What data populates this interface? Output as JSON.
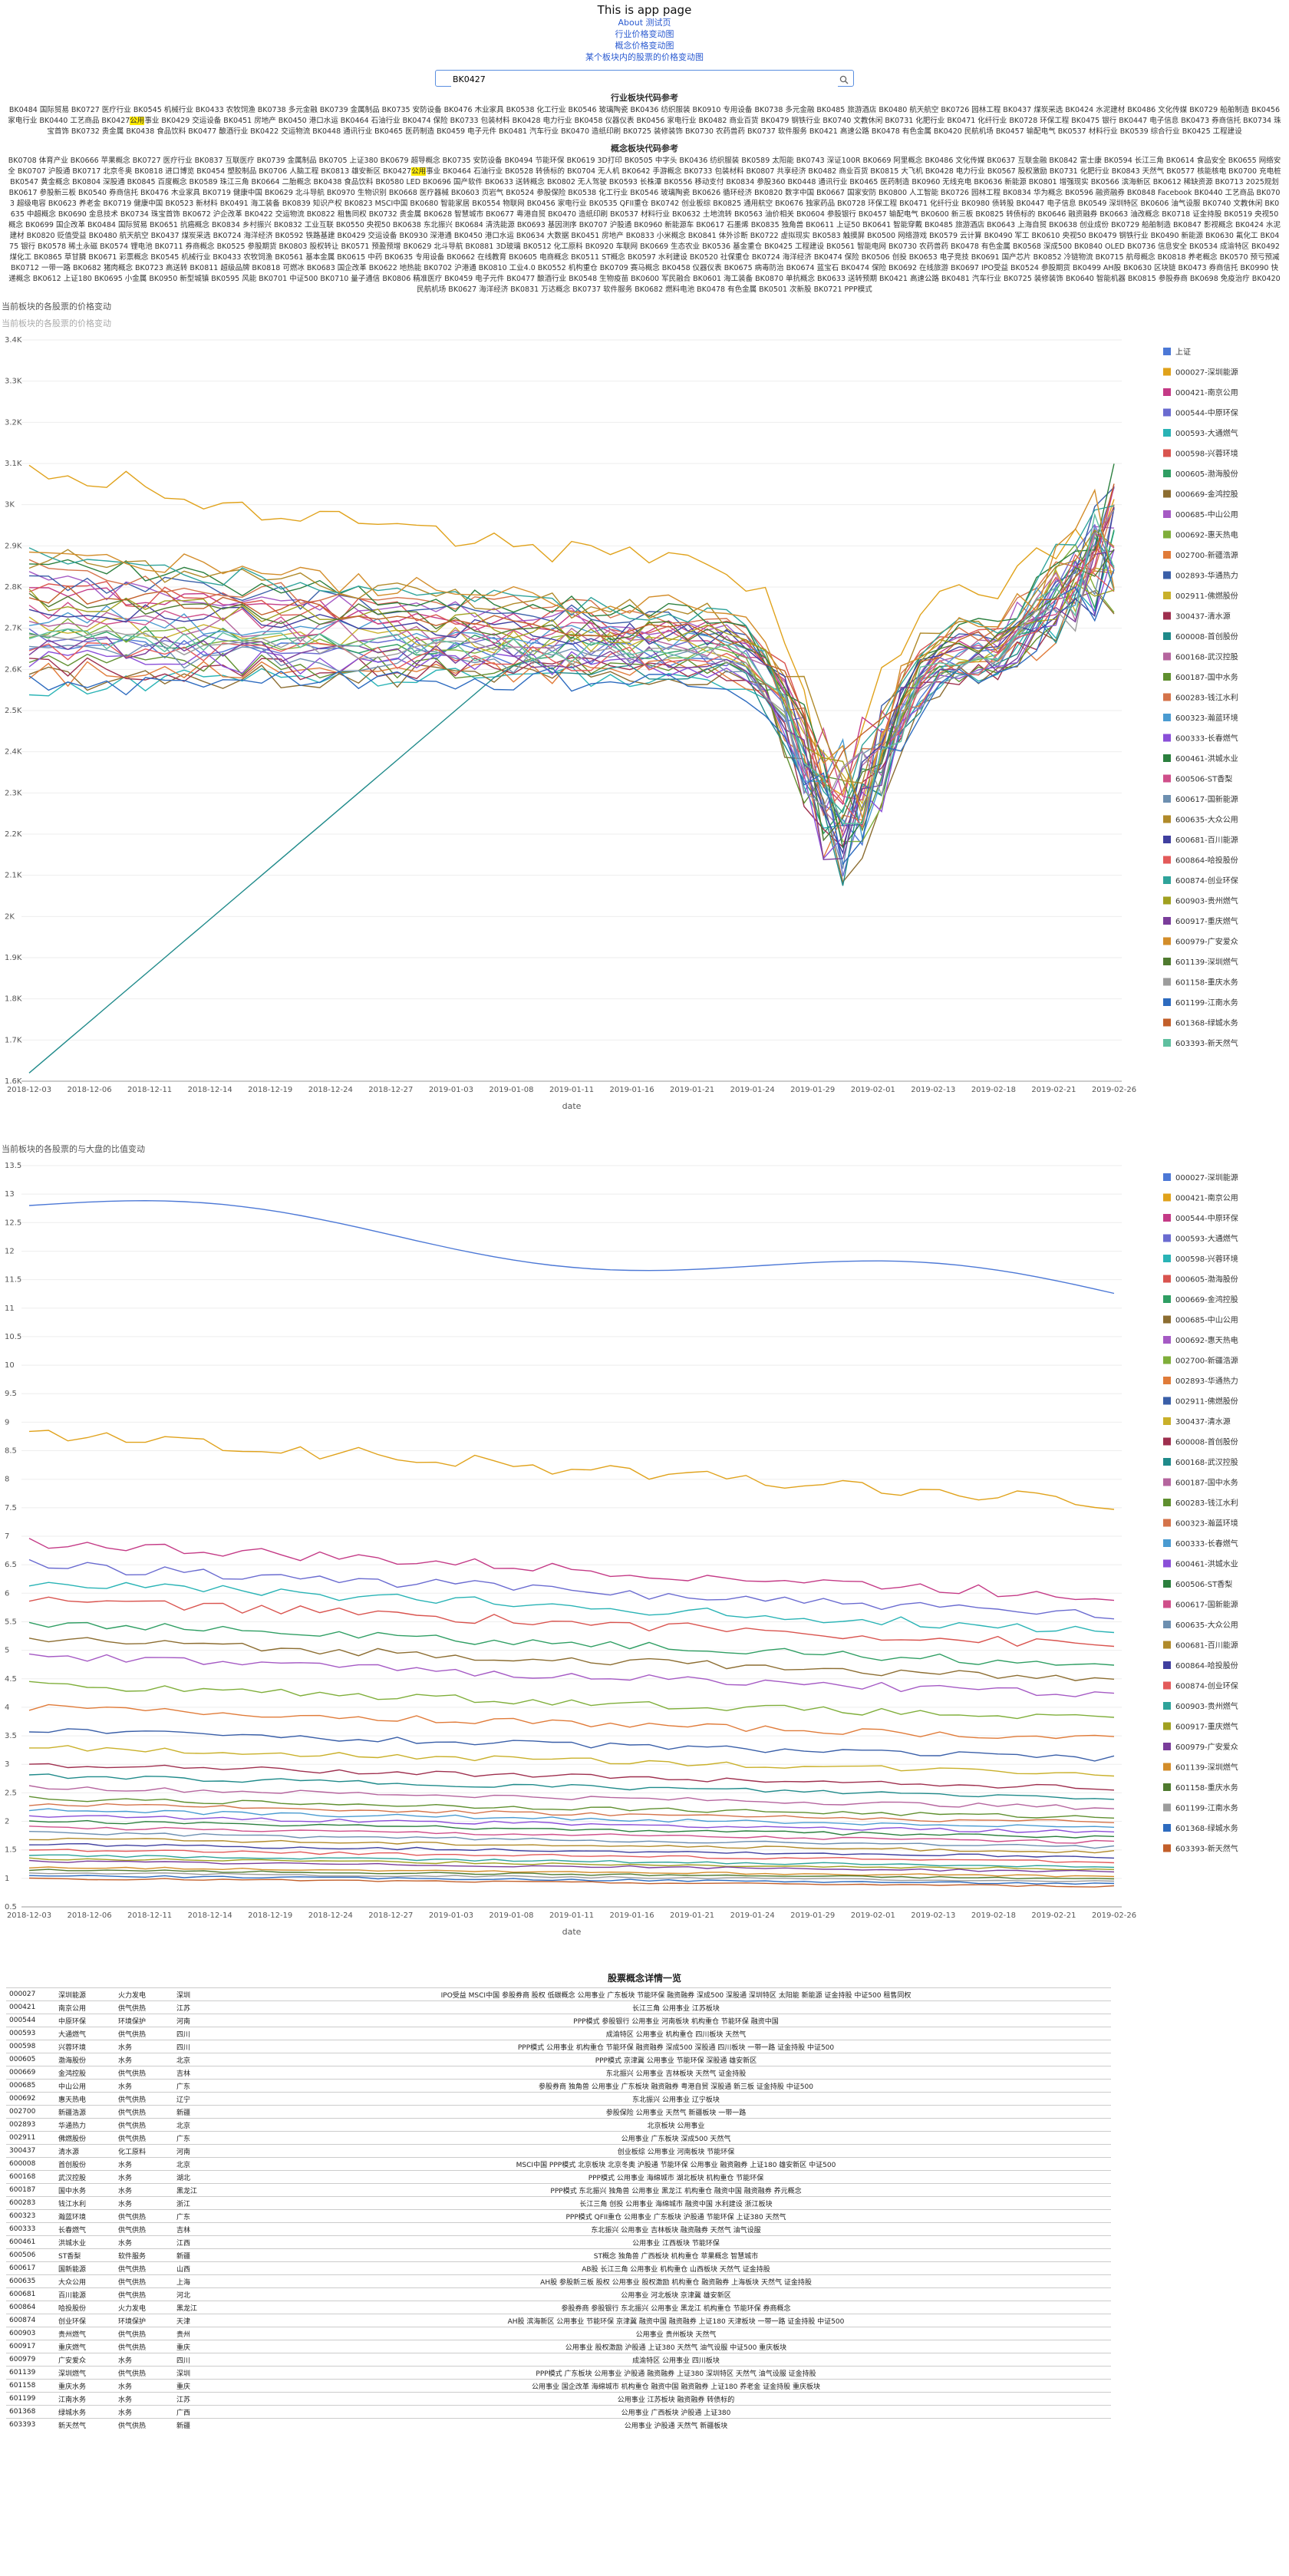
{
  "app": {
    "title": "This is app page",
    "nav": [
      "About 测试页",
      "行业价格变动图",
      "概念价格变动图",
      "某个板块内的股票的价格变动图"
    ]
  },
  "search": {
    "value": "BK0427"
  },
  "sections": {
    "industry_title": "行业板块代码参考",
    "concept_title": "概念板块代码参考",
    "chart1_subtitle": "当前板块的各股票的价格变动",
    "chart2_subtitle": "当前板块的各股票的与大盘的比值变动",
    "chart3_subtitle": "当前板块的各股票的价格变动",
    "table_title": "股票概念详情一览"
  },
  "industry_pre": "BK0484 国际贸易 BK0727 医疗行业 BK0545 机械行业 BK0433 农牧饲渔 BK0738 多元金融 BK0739 金属制品 BK0735 安防设备 BK0476 木业家具 BK0538 化工行业 BK0546 玻璃陶瓷 BK0436 纺织服装 BK0910 专用设备 BK0738 多元金融 BK0485 旅游酒店 BK0480 航天航空 BK0726 园林工程 BK0437 煤炭采选 BK0424 水泥建材 BK0486 文化传媒 BK0729 船舶制造 BK0456 家电行业 BK0440 工艺商品 BK0427",
  "industry_hl": "公用",
  "industry_post": "事业 BK0429 交运设备 BK0451 房地产 BK0450 港口水运 BK0464 石油行业 BK0474 保险 BK0733 包装材料 BK0428 电力行业 BK0458 仪器仪表 BK0456 家电行业 BK0482 商业百货 BK0479 钢铁行业 BK0740 文教休闲 BK0731 化肥行业 BK0471 化纤行业 BK0728 环保工程 BK0475 银行 BK0447 电子信息 BK0473 券商信托 BK0734 珠宝首饰 BK0732 贵金属 BK0438 食品饮料 BK0477 酿酒行业 BK0422 交运物流 BK0448 通讯行业 BK0465 医药制造 BK0459 电子元件 BK0481 汽车行业 BK0470 造纸印刷 BK0725 装修装饰 BK0730 农药兽药 BK0737 软件服务 BK0421 高速公路 BK0478 有色金属 BK0420 民航机场 BK0457 输配电气 BK0537 材料行业 BK0539 综合行业 BK0425 工程建设",
  "concept_pre": "BK0708 体育产业 BK0666 苹果概念 BK0727 医疗行业 BK0837 互联医疗 BK0739 金属制品 BK0705 上证380 BK0679 超导概念 BK0735 安防设备 BK0494 节能环保 BK0619 3D打印 BK0505 中字头 BK0436 纺织服装 BK0589 太阳能 BK0743 深证100R BK0669 阿里概念 BK0486 文化传媒 BK0637 互联金融 BK0842 富士康 BK0594 长江三角 BK0614 食品安全 BK0655 网络安全 BK0707 沪股通 BK0717 北京冬奥 BK0818 进口博览 BK0454 塑胶制品 BK0706 人脑工程 BK0813 雄安新区 BK0427",
  "concept_hl": "公用",
  "concept_post": "事业 BK0464 石油行业 BK0528 转债标的 BK0704 无人机 BK0642 手游概念 BK0733 包装材料 BK0807 共享经济 BK0482 商业百货 BK0815 大飞机 BK0428 电力行业 BK0567 股权激励 BK0731 化肥行业 BK0843 天然气 BK0577 核能核电 BK0700 充电桩 BK0547 黄金概念 BK0804 深股通 BK0845 百度概念 BK0589 珠江三角 BK0664 二胎概念 BK0438 食品饮料 BK0580 LED BK0696 国产软件 BK0633 送转概念 BK0802 无人驾驶 BK0593 长株潭 BK0556 移动支付 BK0834 参股360 BK0448 通讯行业 BK0465 医药制造 BK0960 无线充电 BK0636 新能源 BK0801 增强现实 BK0566 滨海新区 BK0612 稀缺资源 BK0713 2025规划 BK0617 参股新三板 BK0540 券商信托 BK0476 木业家具 BK0719 健康中国 BK0629 北斗导航 BK0970 生物识别 BK0668 医疗器械 BK0603 页岩气 BK0524 参股保险 BK0538 化工行业 BK0546 玻璃陶瓷 BK0626 循环经济 BK0820 数字中国 BK0667 国家安防 BK0800 人工智能 BK0726 园林工程 BK0834 华为概念 BK0596 融资融券 BK0848 Facebook BK0440 工艺商品 BK0703 超级电容 BK0623 养老金 BK0719 健康中国 BK0523 新材料 BK0491 海工装备 BK0839 知识产权 BK0823 MSCI中国 BK0680 智能家居 BK0554 物联网 BK0456 家电行业 BK0535 QFII重仓 BK0742 创业板综 BK0825 通用航空 BK0676 独家药品 BK0728 环保工程 BK0471 化纤行业 BK0980 债转股 BK0447 电子信息 BK0549 深圳特区 BK0606 油气设服 BK0740 文教休闲 BK0635 中超概念 BK0690 金息技术 BK0734 珠宝首饰 BK0672 沪企改革 BK0422 交运物流 BK0822 租售同权 BK0732 贵金属 BK0628 智慧城市 BK0677 粤港自贸 BK0470 造纸印刷 BK0537 材料行业 BK0632 土地流转 BK0563 油价相关 BK0604 参股银行 BK0457 输配电气 BK0600 新三板 BK0825 转债标的 BK0646 融资融券 BK0663 油改概念 BK0718 证金持股 BK0519 央视50概念 BK0699 国企改革 BK0484 国际贸易 BK0651 抗癌概念 BK0834 乡村振兴 BK0832 工业互联 BK0550 央视50 BK0638 东北振兴 BK0684 清洗能源 BK0693 基因测序 BK0707 沪股通 BK0960 新能源车 BK0617 石墨烯 BK0835 独角兽 BK0611 上证50 BK0641 智能穿戴 BK0485 旅游酒店 BK0643 上海自贸 BK0638 创业成份 BK0729 船舶制造 BK0847 影视概念 BK0424 水泥建材 BK0820 贬值受益 BK0480 航天航空 BK0437 煤炭采选 BK0724 海洋经济 BK0592 铁路基建 BK0429 交运设备 BK0930 深港通 BK0450 港口水运 BK0634 大数据 BK0451 房地产 BK0833 小米概念 BK0841 体外诊断 BK0722 虚拟现实 BK0583 触摸屏 BK0500 网络游戏 BK0579 云计算 BK0490 军工 BK0610 央视50 BK0479 钢铁行业 BK0490 新能源 BK0630 氟化工 BK0475 银行 BK0578 稀土永磁 BK0574 锂电池 BK0711 券商概念 BK0525 参股期货 BK0803 股权转让 BK0571 预盈预增 BK0629 北斗导航 BK0881 3D玻璃 BK0512 化工原料 BK0920 车联网 BK0669 生态农业 BK0536 基金重仓 BK0425 工程建设 BK0561 智能电网 BK0730 农药兽药 BK0478 有色金属 BK0568 深成500 BK0840 OLED BK0736 信息安全 BK0534 成渝特区 BK0492 煤化工 BK0865 草甘膦 BK0671 彩票概念 BK0545 机械行业 BK0433 农牧饲渔 BK0561 基本金属 BK0615 中药 BK0635 专用设备 BK0662 在线教育 BK0605 电商概念 BK0511 ST概念 BK0597 水利建设 BK0520 社保重仓 BK0724 海洋经济 BK0474 保险 BK0506 创投 BK0653 电子竞技 BK0691 国产芯片 BK0852 冷链物流 BK0715 航母概念 BK0818 养老概念 BK0570 预亏预减 BK0712 一带一路 BK0682 猪肉概念 BK0723 高送转 BK0811 超级品牌 BK0818 可燃冰 BK0683 国企改革 BK0622 地热能 BK0702 沪港通 BK0810 工业4.0 BK0552 机构重仓 BK0709 赛马概念 BK0458 仪器仪表 BK0675 病毒防治 BK0674 蓝宝石 BK0474 保险 BK0692 在线旅游 BK0697 IPO受益 BK0524 参股期货 BK0499 AH股 BK0630 区块链 BK0473 券商信托 BK0990 快递概念 BK0612 上证180 BK0695 小金属 BK0950 新型城镇 BK0595 风能 BK0701 中证500 BK0710 量子通信 BK0806 精准医疗 BK0459 电子元件 BK0477 酿酒行业 BK0548 生物疫苗 BK0600 军民融合 BK0601 海工装备 BK0870 单抗概念 BK0633 送转预期 BK0421 高速公路 BK0481 汽车行业 BK0725 装修装饰 BK0640 智能机器 BK0815 参股券商 BK0698 免疫治疗 BK0420 民航机场 BK0627 海洋经济 BK0831 万达概念 BK0737 软件服务 BK0682 燃料电池 BK0478 有色金属 BK0501 次新股 BK0721 PPP模式",
  "concept_hl2": "",
  "colors": [
    "#4c78d6",
    "#e0a21b",
    "#c43a86",
    "#6a6bd0",
    "#29b3b5",
    "#d9544f",
    "#2f9e63",
    "#8c6d31",
    "#a55ac4",
    "#7fae3a",
    "#e07b39",
    "#3a5fa8",
    "#c9b02a",
    "#9e2f4e",
    "#1f8a8a",
    "#b5659e",
    "#5f8f2f",
    "#d4734a",
    "#4a9bd1",
    "#8a4fd8",
    "#2b7f3e",
    "#cf4f8a",
    "#6d8fb0",
    "#b08a2a",
    "#3f3f9f",
    "#e35a5a",
    "#2fa39a",
    "#a0a020",
    "#7a3d9a",
    "#d38d2a",
    "#4f7a2f",
    "#9c9c9c",
    "#2d6bbf",
    "#c25f2a",
    "#5fbf9f",
    "#8f2f8f",
    "#3faf3f",
    "#bf3f3f"
  ],
  "legend": [
    "上证",
    "000027-深圳能源",
    "000421-南京公用",
    "000544-中原环保",
    "000593-大通燃气",
    "000598-兴蓉环境",
    "000605-渤海股份",
    "000669-金鸿控股",
    "000685-中山公用",
    "000692-惠天热电",
    "002700-新疆浩源",
    "002893-华通热力",
    "002911-佛燃股份",
    "300437-清水源",
    "600008-首创股份",
    "600168-武汉控股",
    "600187-国中水务",
    "600283-钱江水利",
    "600323-瀚蓝环境",
    "600333-长春燃气",
    "600461-洪城水业",
    "600506-ST香梨",
    "600617-国新能源",
    "600635-大众公用",
    "600681-百川能源",
    "600864-哈投股份",
    "600874-创业环保",
    "600903-贵州燃气",
    "600917-重庆燃气",
    "600979-广安爱众",
    "601139-深圳燃气",
    "601158-重庆水务",
    "601199-江南水务",
    "601368-绿城水务",
    "603393-新天然气"
  ],
  "chart_data": [
    {
      "type": "line",
      "title": "",
      "xlabel": "date",
      "ylabel": "",
      "ylim": [
        1.6,
        3.4
      ],
      "yticks": [
        "1.6K",
        "1.7K",
        "1.8K",
        "1.9K",
        "2K",
        "2.1K",
        "2.2K",
        "2.3K",
        "2.4K",
        "2.5K",
        "2.6K",
        "2.7K",
        "2.8K",
        "2.9K",
        "3K",
        "3.1K",
        "3.2K",
        "3.3K",
        "3.4K"
      ],
      "xticks": [
        "2018-12-03",
        "2018-12-06",
        "2018-12-11",
        "2018-12-14",
        "2018-12-19",
        "2018-12-24",
        "2018-12-27",
        "2019-01-03",
        "2019-01-08",
        "2019-01-11",
        "2019-01-16",
        "2019-01-21",
        "2019-01-24",
        "2019-01-29",
        "2019-02-01",
        "2019-02-13",
        "2019-02-18",
        "2019-02-21",
        "2019-02-26"
      ],
      "series_count": 35
    },
    {
      "type": "line",
      "title": "",
      "xlabel": "date",
      "ylabel": "",
      "ylim": [
        0.5,
        13.5
      ],
      "yticks": [
        "0.5",
        "1",
        "1.5",
        "2",
        "2.5",
        "3",
        "3.5",
        "4",
        "4.5",
        "5",
        "5.5",
        "6",
        "6.5",
        "7",
        "7.5",
        "8",
        "8.5",
        "9",
        "9.5",
        "10",
        "10.5",
        "11",
        "11.5",
        "12",
        "12.5",
        "13",
        "13.5"
      ],
      "xticks": [
        "2018-12-03",
        "2018-12-06",
        "2018-12-11",
        "2018-12-14",
        "2018-12-19",
        "2018-12-24",
        "2018-12-27",
        "2019-01-03",
        "2019-01-08",
        "2019-01-11",
        "2019-01-16",
        "2019-01-21",
        "2019-01-24",
        "2019-01-29",
        "2019-02-01",
        "2019-02-13",
        "2019-02-18",
        "2019-02-21",
        "2019-02-26"
      ],
      "series_count": 34
    }
  ],
  "table": [
    [
      "000027",
      "深圳能源",
      "火力发电",
      "深圳",
      "IPO受益 MSCI中国 参股券商 股权 低碳概念 公用事业 广东板块 节能环保 融资融券 深成500 深股通 深圳特区 太阳能 新能源 证金持股 中证500 租售同权"
    ],
    [
      "000421",
      "南京公用",
      "供气供热",
      "江苏",
      "长江三角 公用事业 江苏板块"
    ],
    [
      "000544",
      "中原环保",
      "环境保护",
      "河南",
      "PPP模式 参股银行 公用事业 河南板块 机构重仓 节能环保 融资中国"
    ],
    [
      "000593",
      "大通燃气",
      "供气供热",
      "四川",
      "成渝特区 公用事业 机构重仓 四川板块 天然气"
    ],
    [
      "000598",
      "兴蓉环境",
      "水务",
      "四川",
      "PPP模式 公用事业 机构重仓 节能环保 融资融券 深成500 深股通 四川板块 一带一路 证金持股 中证500"
    ],
    [
      "000605",
      "渤海股份",
      "水务",
      "北京",
      "PPP模式 京津冀 公用事业 节能环保 深股通 雄安新区"
    ],
    [
      "000669",
      "金鸿控股",
      "供气供热",
      "吉林",
      "东北振兴 公用事业 吉林板块 天然气 证金持股"
    ],
    [
      "000685",
      "中山公用",
      "水务",
      "广东",
      "参股券商 独角兽 公用事业 广东板块 融资融券 粤港自贸 深股通 新三板 证金持股 中证500"
    ],
    [
      "000692",
      "惠天热电",
      "供气供热",
      "辽宁",
      "东北振兴 公用事业 辽宁板块"
    ],
    [
      "002700",
      "新疆浩源",
      "供气供热",
      "新疆",
      "参股保险 公用事业 天然气 新疆板块 一带一路"
    ],
    [
      "002893",
      "华通热力",
      "供气供热",
      "北京",
      "北京板块 公用事业"
    ],
    [
      "002911",
      "佛燃股份",
      "供气供热",
      "广东",
      "公用事业 广东板块 深成500 天然气"
    ],
    [
      "300437",
      "清水源",
      "化工原料",
      "河南",
      "创业板综 公用事业 河南板块 节能环保"
    ],
    [
      "600008",
      "首创股份",
      "水务",
      "北京",
      "MSCI中国 PPP模式 北京板块 北京冬奥 沪股通 节能环保 公用事业 融资融券 上证180 雄安新区 中证500"
    ],
    [
      "600168",
      "武汉控股",
      "水务",
      "湖北",
      "PPP模式 公用事业 海绵城市 湖北板块 机构重仓 节能环保"
    ],
    [
      "600187",
      "国中水务",
      "水务",
      "黑龙江",
      "PPP模式 东北振兴 独角兽 公用事业 黑龙江 机构重仓 融资中国 融资融券 养元概念"
    ],
    [
      "600283",
      "钱江水利",
      "水务",
      "浙江",
      "长江三角 创投 公用事业 海绵城市 融资中国 水利建设 浙江板块"
    ],
    [
      "600323",
      "瀚蓝环境",
      "供气供热",
      "广东",
      "PPP模式 QFII重仓 公用事业 广东板块 沪股通 节能环保 上证380 天然气"
    ],
    [
      "600333",
      "长春燃气",
      "供气供热",
      "吉林",
      "东北振兴 公用事业 吉林板块 融资融券 天然气 油气设服"
    ],
    [
      "600461",
      "洪城水业",
      "水务",
      "江西",
      "公用事业 江西板块 节能环保"
    ],
    [
      "600506",
      "ST香梨",
      "软件服务",
      "新疆",
      "ST概念 独角兽 广西板块 机构重仓 苹果概念 智慧城市"
    ],
    [
      "600617",
      "国新能源",
      "供气供热",
      "山西",
      "AB股 长江三角 公用事业 机构重仓 山西板块 天然气 证金持股"
    ],
    [
      "600635",
      "大众公用",
      "供气供热",
      "上海",
      "AH股 参股新三板 股权 公用事业 股权激励 机构重仓 融资融券 上海板块 天然气 证金持股"
    ],
    [
      "600681",
      "百川能源",
      "供气供热",
      "河北",
      "公用事业 河北板块 京津冀 雄安新区"
    ],
    [
      "600864",
      "哈投股份",
      "火力发电",
      "黑龙江",
      "参股券商 参股银行 东北振兴 公用事业 黑龙江 机构重仓 节能环保 券商概念"
    ],
    [
      "600874",
      "创业环保",
      "环境保护",
      "天津",
      "AH股 滨海新区 公用事业 节能环保 京津冀 融资中国 融资融券 上证180 天津板块 一带一路 证金持股 中证500"
    ],
    [
      "600903",
      "贵州燃气",
      "供气供热",
      "贵州",
      "公用事业 贵州板块 天然气"
    ],
    [
      "600917",
      "重庆燃气",
      "供气供热",
      "重庆",
      "公用事业 股权激励 沪股通 上证380 天然气 油气设服 中证500 重庆板块"
    ],
    [
      "600979",
      "广安爱众",
      "水务",
      "四川",
      "成渝特区 公用事业 四川板块"
    ],
    [
      "601139",
      "深圳燃气",
      "供气供热",
      "深圳",
      "PPP模式 广东板块 公用事业 沪股通 融资融券 上证380 深圳特区 天然气 油气设服 证金持股"
    ],
    [
      "601158",
      "重庆水务",
      "水务",
      "重庆",
      "公用事业 国企改革 海绵城市 机构重仓 融资中国 融资融券 上证180 养老金 证金持股 重庆板块"
    ],
    [
      "601199",
      "江南水务",
      "水务",
      "江苏",
      "公用事业 江苏板块 融资融券 转债标的"
    ],
    [
      "601368",
      "绿城水务",
      "水务",
      "广西",
      "公用事业 广西板块 沪股通 上证380"
    ],
    [
      "603393",
      "新天然气",
      "供气供热",
      "新疆",
      "公用事业 沪股通 天然气 新疆板块"
    ]
  ]
}
